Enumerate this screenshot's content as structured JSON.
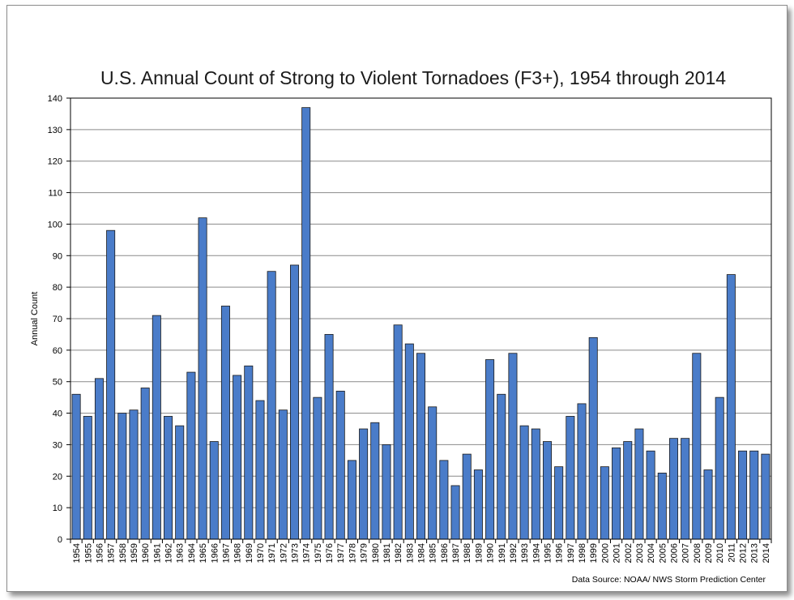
{
  "chart_data": {
    "type": "bar",
    "title": "U.S. Annual Count of Strong to Violent Tornadoes (F3+), 1954 through 2014",
    "xlabel": "",
    "ylabel": "Annual Count",
    "ylim": [
      0,
      140
    ],
    "ytick_step": 10,
    "grid": true,
    "legend": "none",
    "source": "Data Source: NOAA/ NWS Storm Prediction Center",
    "colors": {
      "bar_fill": "#4a7cc9",
      "bar_stroke": "#1a1a1a",
      "grid": "#8a8a8a",
      "axis": "#000000"
    },
    "categories": [
      "1954",
      "1955",
      "1956",
      "1957",
      "1958",
      "1959",
      "1960",
      "1961",
      "1962",
      "1963",
      "1964",
      "1965",
      "1966",
      "1967",
      "1968",
      "1969",
      "1970",
      "1971",
      "1972",
      "1973",
      "1974",
      "1975",
      "1976",
      "1977",
      "1978",
      "1979",
      "1980",
      "1981",
      "1982",
      "1983",
      "1984",
      "1985",
      "1986",
      "1987",
      "1988",
      "1989",
      "1990",
      "1991",
      "1992",
      "1993",
      "1994",
      "1995",
      "1996",
      "1997",
      "1998",
      "1999",
      "2000",
      "2001",
      "2002",
      "2003",
      "2004",
      "2005",
      "2006",
      "2007",
      "2008",
      "2009",
      "2010",
      "2011",
      "2012",
      "2013",
      "2014"
    ],
    "values": [
      46,
      39,
      51,
      98,
      40,
      41,
      48,
      71,
      39,
      36,
      53,
      102,
      31,
      74,
      52,
      55,
      44,
      85,
      41,
      87,
      137,
      45,
      65,
      47,
      25,
      35,
      37,
      30,
      68,
      62,
      59,
      42,
      25,
      17,
      27,
      22,
      57,
      46,
      59,
      36,
      35,
      31,
      23,
      39,
      43,
      64,
      23,
      29,
      31,
      35,
      28,
      21,
      32,
      32,
      59,
      22,
      45,
      84,
      28,
      28,
      27
    ]
  }
}
